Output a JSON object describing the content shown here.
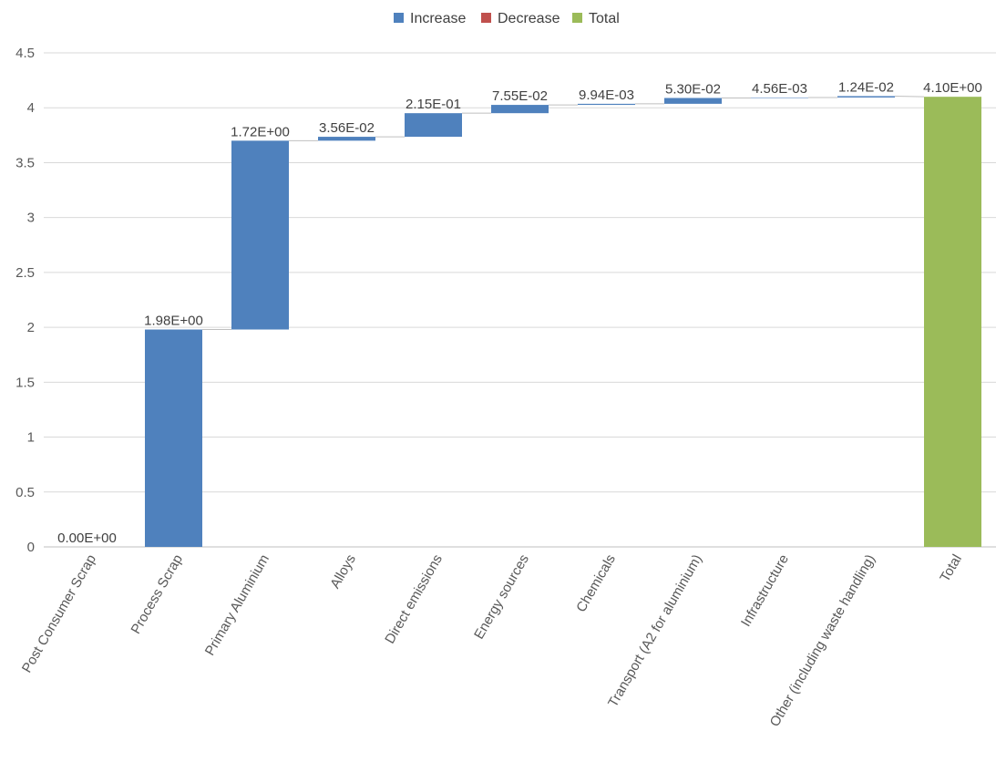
{
  "chart_data": {
    "type": "waterfall",
    "legend": {
      "position": "top",
      "items": [
        {
          "label": "Increase",
          "color": "#4F81BD"
        },
        {
          "label": "Decrease",
          "color": "#C0504D"
        },
        {
          "label": "Total",
          "color": "#9BBB59"
        }
      ]
    },
    "categories": [
      "Post Consumer Scrap",
      "Process Scrap",
      "Primary Aluminium",
      "Alloys",
      "Direct emissions",
      "Energy sources",
      "Chemicals",
      "Transport (A2 for aluminium)",
      "Infrastructure",
      "Other (including waste handling)",
      "Total"
    ],
    "values": [
      0,
      1.98,
      1.72,
      0.0356,
      0.215,
      0.0755,
      0.00994,
      0.053,
      0.00456,
      0.0124,
      4.1
    ],
    "labels": [
      "0.00E+00",
      "1.98E+00",
      "1.72E+00",
      "3.56E-02",
      "2.15E-01",
      "7.55E-02",
      "9.94E-03",
      "5.30E-02",
      "4.56E-03",
      "1.24E-02",
      "4.10E+00"
    ],
    "kinds": [
      "increase",
      "increase",
      "increase",
      "increase",
      "increase",
      "increase",
      "increase",
      "increase",
      "increase",
      "increase",
      "total"
    ],
    "y_ticks": [
      "0",
      "0.5",
      "1",
      "1.5",
      "2",
      "2.5",
      "3",
      "3.5",
      "4",
      "4.5"
    ],
    "ylim": [
      0,
      4.5
    ],
    "grid": true
  }
}
